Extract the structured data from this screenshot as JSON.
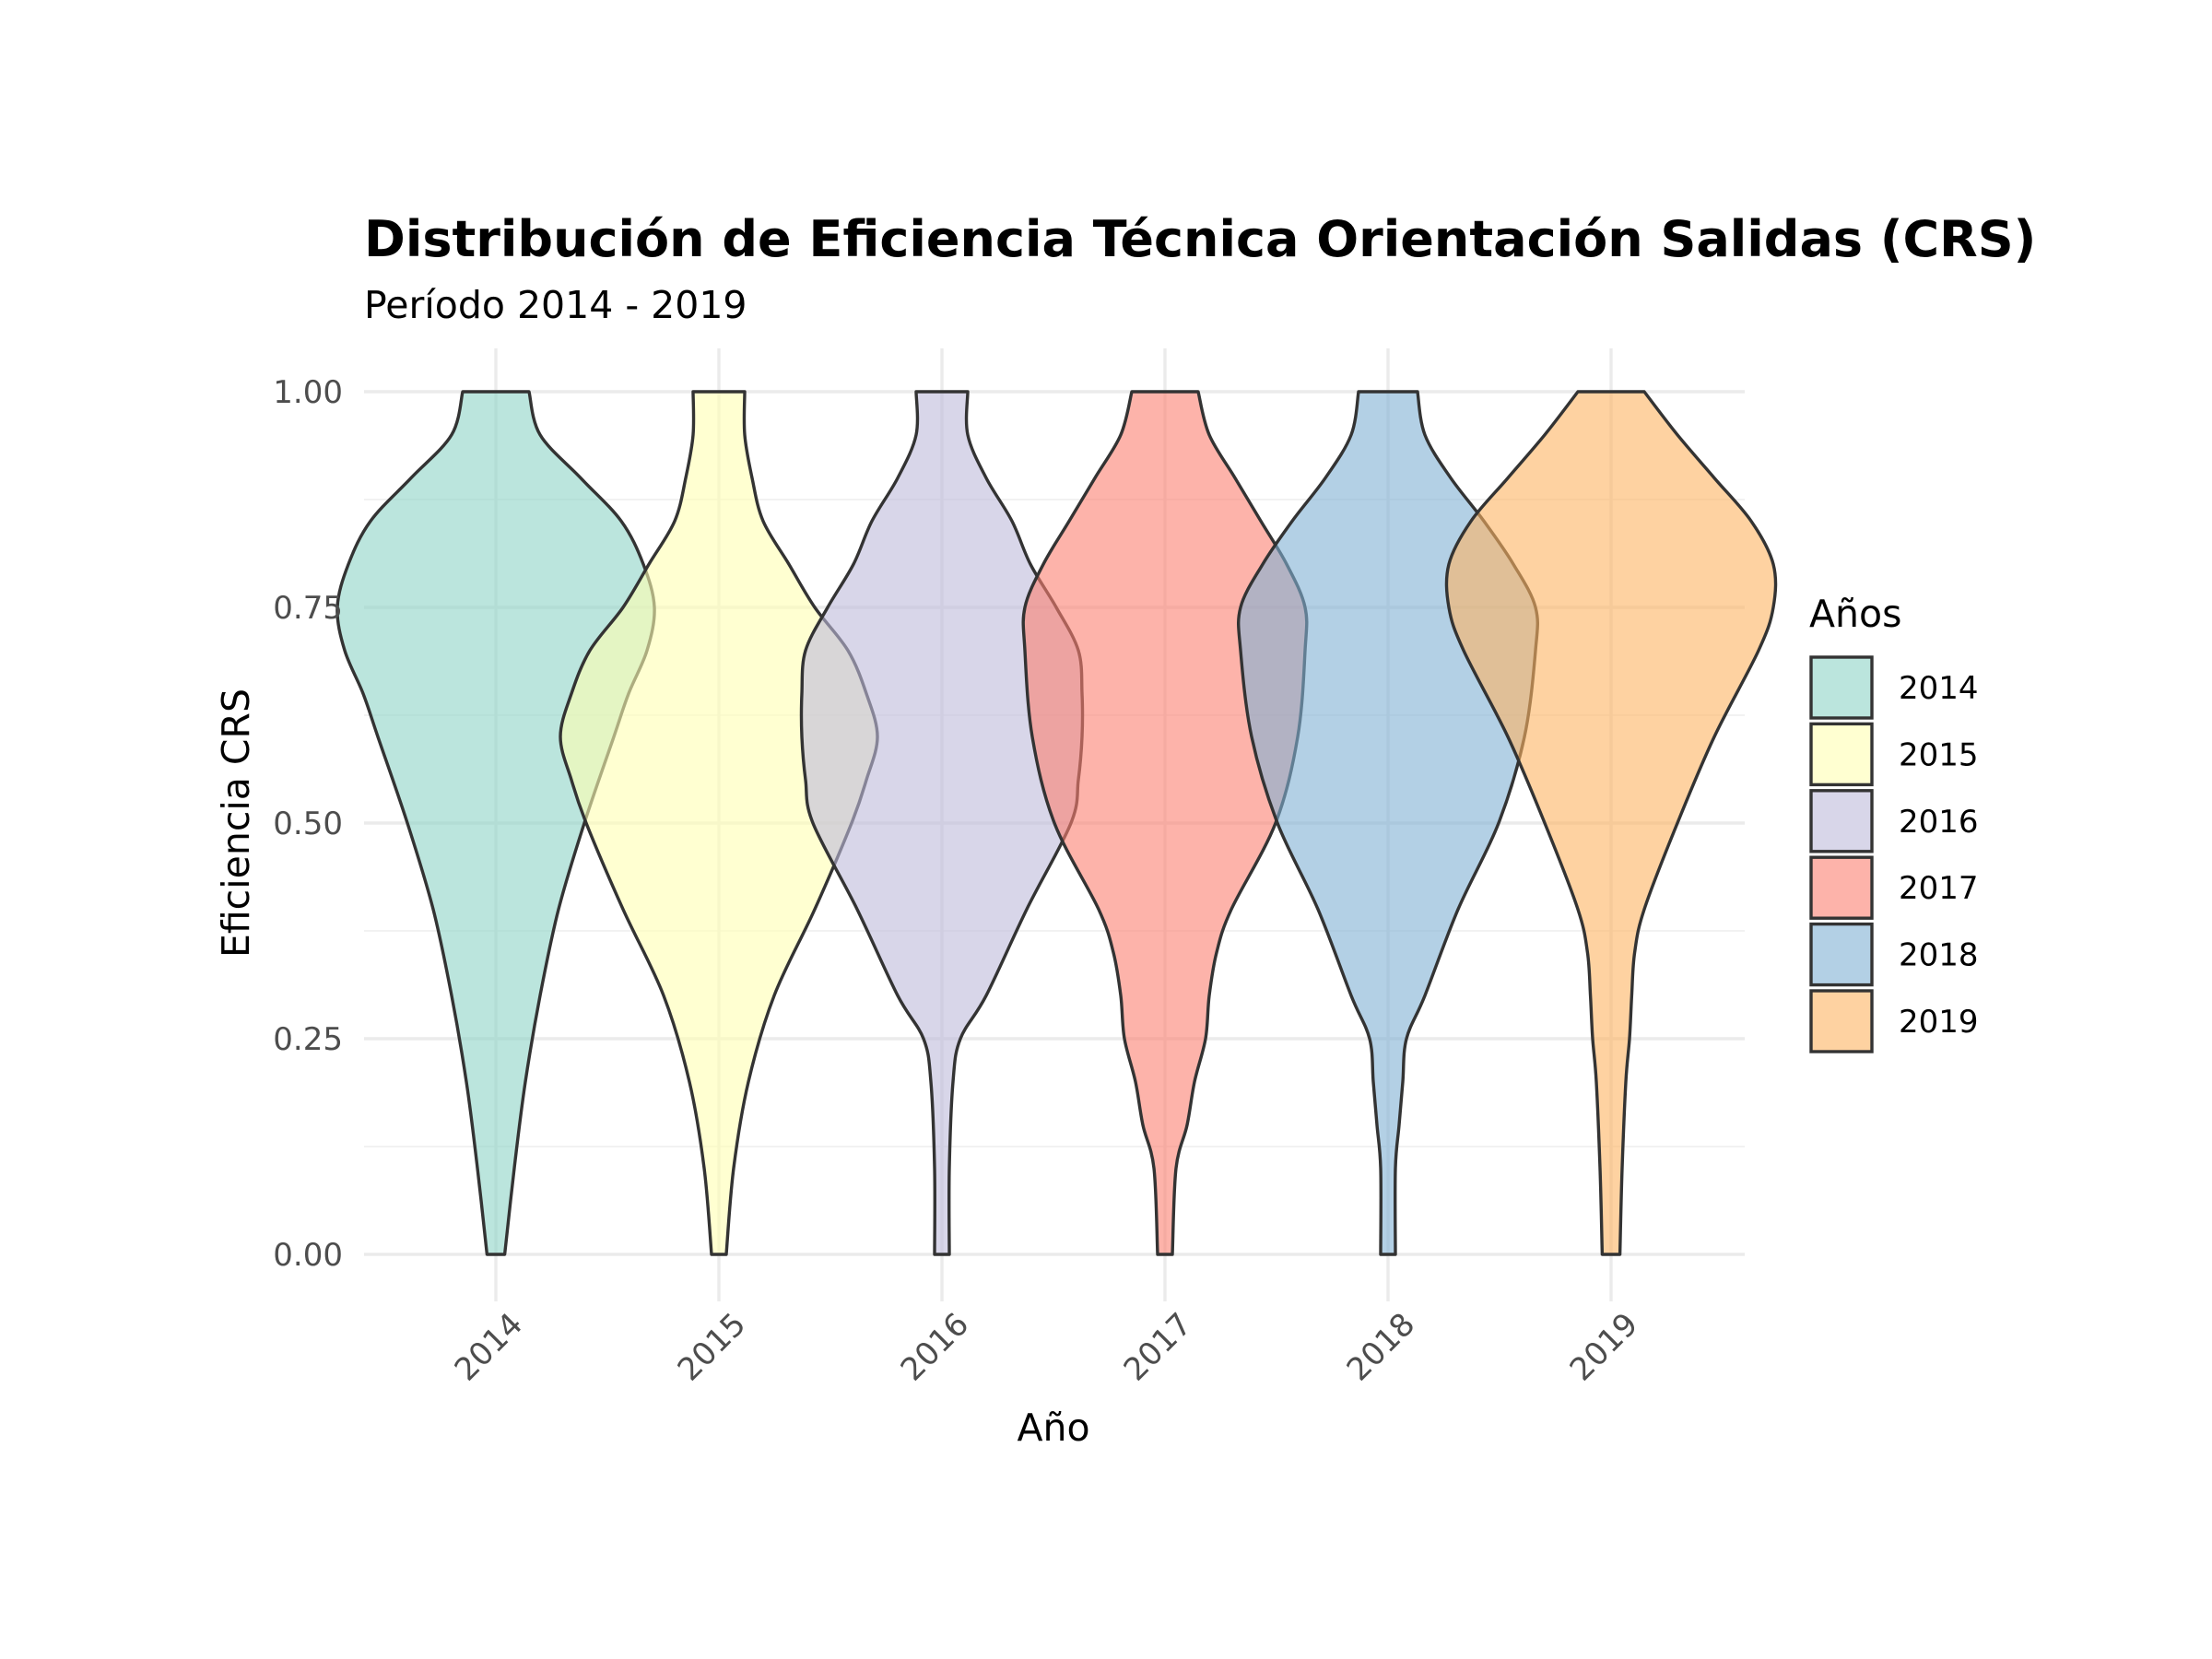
{
  "chart_data": {
    "type": "violin",
    "title": "Distribución de Eficiencia Técnica Orientación Salidas (CRS)",
    "subtitle": "Período 2014 - 2019",
    "xlabel": "Año",
    "ylabel": "Eficiencia CRS",
    "ylim": [
      0,
      1
    ],
    "yticks": [
      "0.00",
      "0.25",
      "0.50",
      "0.75",
      "1.00"
    ],
    "categories": [
      "2014",
      "2015",
      "2016",
      "2017",
      "2018",
      "2019"
    ],
    "grid": true,
    "legend": {
      "title": "Años",
      "placement": "right",
      "entries": [
        "2014",
        "2015",
        "2016",
        "2017",
        "2018",
        "2019"
      ]
    },
    "series": [
      {
        "name": "2014",
        "color": "#8DD3C7",
        "density_profile": [
          [
            0.0,
            0.012
          ],
          [
            0.1,
            0.025
          ],
          [
            0.2,
            0.04
          ],
          [
            0.3,
            0.06
          ],
          [
            0.4,
            0.085
          ],
          [
            0.5,
            0.12
          ],
          [
            0.6,
            0.16
          ],
          [
            0.65,
            0.18
          ],
          [
            0.7,
            0.205
          ],
          [
            0.75,
            0.215
          ],
          [
            0.8,
            0.2
          ],
          [
            0.85,
            0.17
          ],
          [
            0.9,
            0.115
          ],
          [
            0.95,
            0.06
          ],
          [
            1.0,
            0.045
          ]
        ]
      },
      {
        "name": "2015",
        "color": "#FFFFB3",
        "density_profile": [
          [
            0.0,
            0.01
          ],
          [
            0.1,
            0.02
          ],
          [
            0.2,
            0.04
          ],
          [
            0.3,
            0.075
          ],
          [
            0.4,
            0.13
          ],
          [
            0.5,
            0.18
          ],
          [
            0.55,
            0.2
          ],
          [
            0.6,
            0.215
          ],
          [
            0.65,
            0.2
          ],
          [
            0.7,
            0.175
          ],
          [
            0.75,
            0.13
          ],
          [
            0.8,
            0.095
          ],
          [
            0.85,
            0.06
          ],
          [
            0.9,
            0.045
          ],
          [
            0.95,
            0.035
          ],
          [
            1.0,
            0.035
          ]
        ]
      },
      {
        "name": "2016",
        "color": "#BEBADA",
        "density_profile": [
          [
            0.0,
            0.01
          ],
          [
            0.1,
            0.01
          ],
          [
            0.2,
            0.015
          ],
          [
            0.25,
            0.025
          ],
          [
            0.3,
            0.06
          ],
          [
            0.4,
            0.115
          ],
          [
            0.5,
            0.175
          ],
          [
            0.55,
            0.185
          ],
          [
            0.6,
            0.19
          ],
          [
            0.65,
            0.19
          ],
          [
            0.7,
            0.185
          ],
          [
            0.75,
            0.155
          ],
          [
            0.8,
            0.12
          ],
          [
            0.85,
            0.095
          ],
          [
            0.9,
            0.06
          ],
          [
            0.95,
            0.035
          ],
          [
            1.0,
            0.035
          ]
        ]
      },
      {
        "name": "2017",
        "color": "#FB8072",
        "density_profile": [
          [
            0.0,
            0.01
          ],
          [
            0.1,
            0.015
          ],
          [
            0.15,
            0.03
          ],
          [
            0.2,
            0.04
          ],
          [
            0.25,
            0.055
          ],
          [
            0.3,
            0.06
          ],
          [
            0.35,
            0.07
          ],
          [
            0.4,
            0.09
          ],
          [
            0.5,
            0.15
          ],
          [
            0.6,
            0.18
          ],
          [
            0.7,
            0.19
          ],
          [
            0.75,
            0.19
          ],
          [
            0.8,
            0.165
          ],
          [
            0.85,
            0.13
          ],
          [
            0.9,
            0.095
          ],
          [
            0.95,
            0.06
          ],
          [
            1.0,
            0.045
          ]
        ]
      },
      {
        "name": "2018",
        "color": "#80B1D3",
        "density_profile": [
          [
            0.0,
            0.01
          ],
          [
            0.1,
            0.01
          ],
          [
            0.15,
            0.015
          ],
          [
            0.2,
            0.02
          ],
          [
            0.25,
            0.025
          ],
          [
            0.3,
            0.05
          ],
          [
            0.4,
            0.095
          ],
          [
            0.5,
            0.15
          ],
          [
            0.6,
            0.185
          ],
          [
            0.7,
            0.2
          ],
          [
            0.75,
            0.2
          ],
          [
            0.8,
            0.17
          ],
          [
            0.85,
            0.13
          ],
          [
            0.9,
            0.085
          ],
          [
            0.95,
            0.05
          ],
          [
            1.0,
            0.04
          ]
        ]
      },
      {
        "name": "2019",
        "color": "#FDB462",
        "density_profile": [
          [
            0.0,
            0.012
          ],
          [
            0.1,
            0.015
          ],
          [
            0.2,
            0.02
          ],
          [
            0.25,
            0.025
          ],
          [
            0.3,
            0.028
          ],
          [
            0.35,
            0.032
          ],
          [
            0.4,
            0.045
          ],
          [
            0.5,
            0.09
          ],
          [
            0.6,
            0.14
          ],
          [
            0.7,
            0.2
          ],
          [
            0.75,
            0.22
          ],
          [
            0.8,
            0.22
          ],
          [
            0.85,
            0.19
          ],
          [
            0.9,
            0.14
          ],
          [
            0.95,
            0.09
          ],
          [
            1.0,
            0.045
          ]
        ]
      }
    ]
  }
}
